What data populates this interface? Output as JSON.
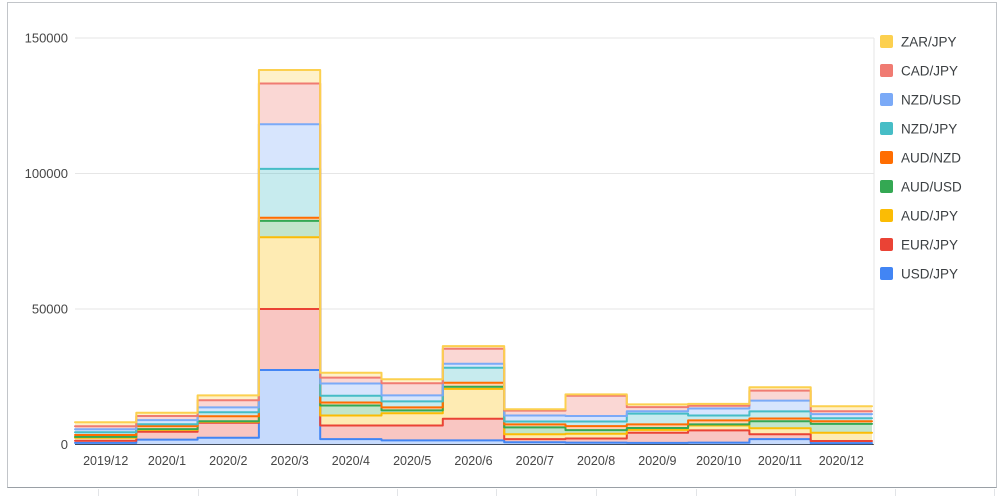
{
  "chart_data": {
    "type": "area",
    "variant": "stepped-stacked",
    "title": "",
    "xlabel": "",
    "ylabel": "",
    "x": [
      "2019/12",
      "2020/1",
      "2020/2",
      "2020/3",
      "2020/4",
      "2020/5",
      "2020/6",
      "2020/7",
      "2020/8",
      "2020/9",
      "2020/10",
      "2020/11",
      "2020/12"
    ],
    "yticks": [
      0,
      50000,
      100000,
      150000
    ],
    "ytick_labels": [
      "0",
      "50000",
      "100000",
      "150000"
    ],
    "ylim": [
      0,
      150000
    ],
    "grid": true,
    "legend_position": "right",
    "fill_opacity": 0.3,
    "series": [
      {
        "name": "USD/JPY",
        "color": "#4285F4",
        "values": [
          600,
          1800,
          2500,
          27500,
          2000,
          1500,
          1500,
          800,
          700,
          600,
          700,
          2000,
          500
        ]
      },
      {
        "name": "EUR/JPY",
        "color": "#EA4335",
        "values": [
          800,
          2900,
          5500,
          22500,
          5000,
          5500,
          8000,
          1200,
          1500,
          3700,
          4500,
          1800,
          800
        ]
      },
      {
        "name": "AUD/JPY",
        "color": "#FBBC04",
        "values": [
          1100,
          700,
          400,
          26500,
          3700,
          4500,
          11000,
          1800,
          1800,
          1100,
          1800,
          2200,
          3000
        ]
      },
      {
        "name": "AUD/USD",
        "color": "#34A853",
        "values": [
          300,
          300,
          200,
          6000,
          3700,
          1100,
          800,
          2500,
          1300,
          700,
          400,
          2600,
          3300
        ]
      },
      {
        "name": "AUD/NZD",
        "color": "#FF6D01",
        "values": [
          700,
          1100,
          1800,
          1200,
          1100,
          1100,
          1500,
          1100,
          1500,
          1300,
          1500,
          1000,
          1000
        ]
      },
      {
        "name": "NZD/JPY",
        "color": "#46BDC6",
        "values": [
          1000,
          700,
          1500,
          18000,
          2500,
          2200,
          5500,
          1100,
          1700,
          4000,
          1800,
          2600,
          1100
        ]
      },
      {
        "name": "NZD/USD",
        "color": "#7BAAF7",
        "values": [
          1100,
          1500,
          1800,
          16500,
          4500,
          2200,
          1500,
          2200,
          2000,
          900,
          2600,
          4000,
          1500
        ]
      },
      {
        "name": "CAD/JPY",
        "color": "#F07B72",
        "values": [
          1100,
          1500,
          2600,
          15000,
          2200,
          4500,
          5500,
          1800,
          7500,
          1500,
          1000,
          3700,
          1100
        ]
      },
      {
        "name": "ZAR/JPY",
        "color": "#FCD04F",
        "values": [
          1500,
          1200,
          1800,
          5000,
          1800,
          1500,
          1000,
          500,
          500,
          1000,
          700,
          1200,
          1800
        ]
      }
    ],
    "legend": [
      "ZAR/JPY",
      "CAD/JPY",
      "NZD/USD",
      "NZD/JPY",
      "AUD/NZD",
      "AUD/USD",
      "AUD/JPY",
      "EUR/JPY",
      "USD/JPY"
    ]
  },
  "colors": {
    "axis_baseline": "#424242",
    "gridline": "#e6e6e6",
    "tick_text": "#464646",
    "legend_text": "#3c4043",
    "widget_border": "#c2c5c9",
    "sheet_gridline": "#e2e4e7"
  }
}
